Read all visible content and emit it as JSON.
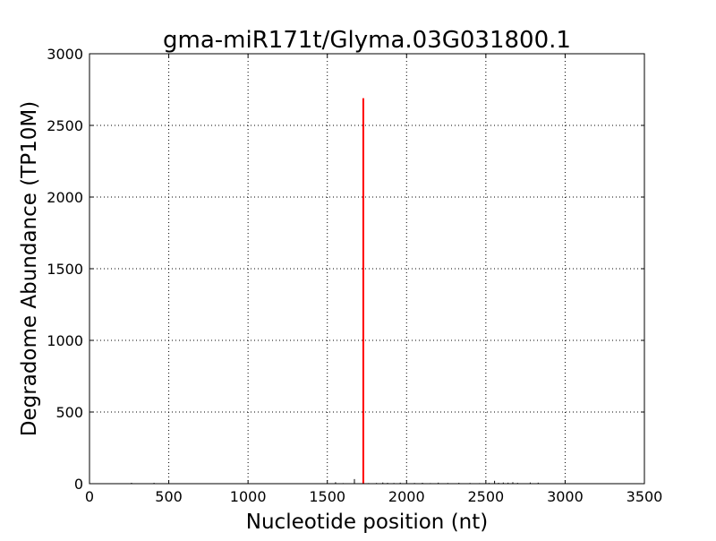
{
  "chart_data": {
    "type": "bar",
    "title": "gma-miR171t/Glyma.03G031800.1",
    "xlabel": "Nucleotide position (nt)",
    "ylabel": "Degradome Abundance (TP10M)",
    "xlim": [
      0,
      3500
    ],
    "ylim": [
      0,
      3000
    ],
    "xticks": [
      0,
      500,
      1000,
      1500,
      2000,
      2500,
      3000,
      3500
    ],
    "yticks": [
      0,
      500,
      1000,
      1500,
      2000,
      2500,
      3000
    ],
    "grid": true,
    "highlight_color": "#ff0000",
    "bar_color": "#000000",
    "highlight": {
      "x": 1727,
      "y": 2690
    },
    "bars": [
      {
        "x": 265,
        "y": 6
      },
      {
        "x": 407,
        "y": 6
      },
      {
        "x": 1350,
        "y": 3
      },
      {
        "x": 1450,
        "y": 3
      },
      {
        "x": 1552,
        "y": 10
      },
      {
        "x": 1600,
        "y": 4
      },
      {
        "x": 1671,
        "y": 32
      },
      {
        "x": 1760,
        "y": 4
      },
      {
        "x": 1810,
        "y": 5
      },
      {
        "x": 1850,
        "y": 8
      },
      {
        "x": 1880,
        "y": 6
      },
      {
        "x": 1920,
        "y": 5
      },
      {
        "x": 1960,
        "y": 7
      },
      {
        "x": 2050,
        "y": 5
      },
      {
        "x": 2100,
        "y": 6
      },
      {
        "x": 2150,
        "y": 4
      },
      {
        "x": 2200,
        "y": 7
      },
      {
        "x": 2260,
        "y": 5
      },
      {
        "x": 2330,
        "y": 6
      },
      {
        "x": 2400,
        "y": 5
      },
      {
        "x": 2460,
        "y": 4
      },
      {
        "x": 2520,
        "y": 5
      },
      {
        "x": 2555,
        "y": 20
      },
      {
        "x": 2580,
        "y": 6
      },
      {
        "x": 2610,
        "y": 8
      },
      {
        "x": 2640,
        "y": 7
      },
      {
        "x": 2670,
        "y": 10
      },
      {
        "x": 2700,
        "y": 6
      },
      {
        "x": 2780,
        "y": 8
      },
      {
        "x": 2830,
        "y": 7
      },
      {
        "x": 2900,
        "y": 3
      }
    ]
  }
}
